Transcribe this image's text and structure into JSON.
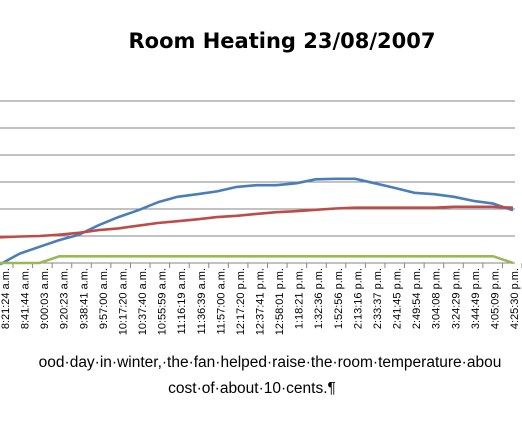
{
  "chart_data": {
    "type": "line",
    "title": "Room Heating 23/08/2007",
    "xlabel": "",
    "ylabel": "",
    "grid": true,
    "legend": "none",
    "x": [
      "8:21:24 a.m.",
      "8:41:44 a.m.",
      "9:00:03 a.m.",
      "9:20:23 a.m.",
      "9:38:41 a.m.",
      "9:57:00 a.m.",
      "10:17:20 a.m.",
      "10:37:40 a.m.",
      "10:55:59 a.m.",
      "11:16:19 a.m.",
      "11:36:39 a.m.",
      "11:57:00 a.m.",
      "12:17:20 p.m.",
      "12:37:41 p.m.",
      "12:58:01 p.m.",
      "1:18:21 p.m.",
      "1:32:36 p.m.",
      "1:52:56 p.m.",
      "2:13:16 p.m.",
      "2:33:37 p.m.",
      "2:41:45 p.m.",
      "2:49:54 p.m.",
      "3:04:08 p.m.",
      "3:24:29 p.m.",
      "3:44:49 p.m.",
      "4:05:09 p.m.",
      "4:25:30 p.m."
    ],
    "series": [
      {
        "color": "#4a7ebb",
        "values": [
          -0.05,
          0.35,
          0.6,
          0.85,
          1.05,
          1.4,
          1.7,
          1.95,
          2.25,
          2.45,
          2.55,
          2.65,
          2.82,
          2.88,
          2.88,
          2.95,
          3.1,
          3.12,
          3.12,
          2.95,
          2.78,
          2.6,
          2.55,
          2.45,
          2.3,
          2.2,
          1.95
        ]
      },
      {
        "color": "#be4b48",
        "values": [
          0.95,
          0.98,
          1.0,
          1.05,
          1.12,
          1.22,
          1.28,
          1.38,
          1.48,
          1.55,
          1.62,
          1.7,
          1.75,
          1.82,
          1.88,
          1.92,
          1.97,
          2.02,
          2.05,
          2.05,
          2.05,
          2.05,
          2.05,
          2.08,
          2.08,
          2.08,
          2.05
        ]
      },
      {
        "color": "#98b954",
        "values": [
          0,
          0,
          0,
          0.25,
          0.25,
          0.25,
          0.25,
          0.25,
          0.25,
          0.25,
          0.25,
          0.25,
          0.25,
          0.25,
          0.25,
          0.25,
          0.25,
          0.25,
          0.25,
          0.25,
          0.25,
          0.25,
          0.25,
          0.25,
          0.25,
          0.25,
          0
        ]
      }
    ]
  },
  "caption": {
    "line1": "ood·day·in·winter,·the·fan·helped·raise·the·room·temperature·abou",
    "line2": "cost·of·about·10·cents.¶"
  }
}
